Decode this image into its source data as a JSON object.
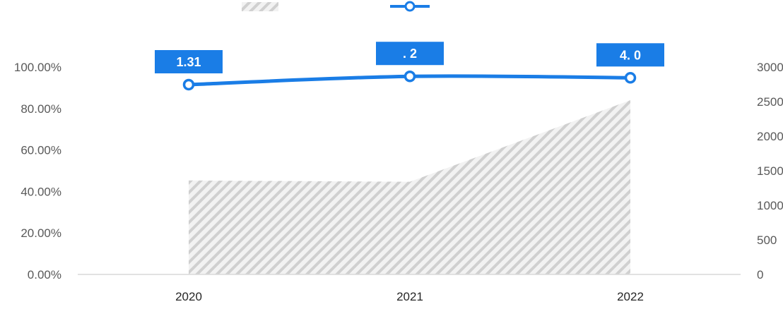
{
  "chart_data": {
    "type": "line",
    "categories": [
      "2020",
      "2021",
      "2022"
    ],
    "series": [
      {
        "kind": "area",
        "axis": "right",
        "values": [
          1360,
          1340,
          2520
        ],
        "color": "#d9d9d9",
        "pattern": "diagonal-hatch"
      },
      {
        "kind": "line",
        "axis": "left",
        "values": [
          0.915,
          0.955,
          0.948
        ],
        "data_labels": [
          "1.31",
          ". 2",
          "4.  0"
        ],
        "color": "#1a7de6"
      }
    ],
    "left_axis": {
      "ylim": [
        0,
        1
      ],
      "ticks": [
        0,
        0.2,
        0.4,
        0.6,
        0.8,
        1
      ],
      "tick_labels": [
        "0.00%",
        "20.00%",
        "40.00%",
        "60.00%",
        "80.00%",
        "100.00%"
      ]
    },
    "right_axis": {
      "ylim": [
        0,
        3000
      ],
      "ticks": [
        0,
        500,
        1000,
        1500,
        2000,
        2500,
        3000
      ],
      "tick_labels": [
        "0",
        "500",
        "1000",
        "1500",
        "2000",
        "2500",
        "3000"
      ]
    },
    "legend": "top-center",
    "grid": false,
    "title": "",
    "xlabel": "",
    "ylabel": ""
  }
}
